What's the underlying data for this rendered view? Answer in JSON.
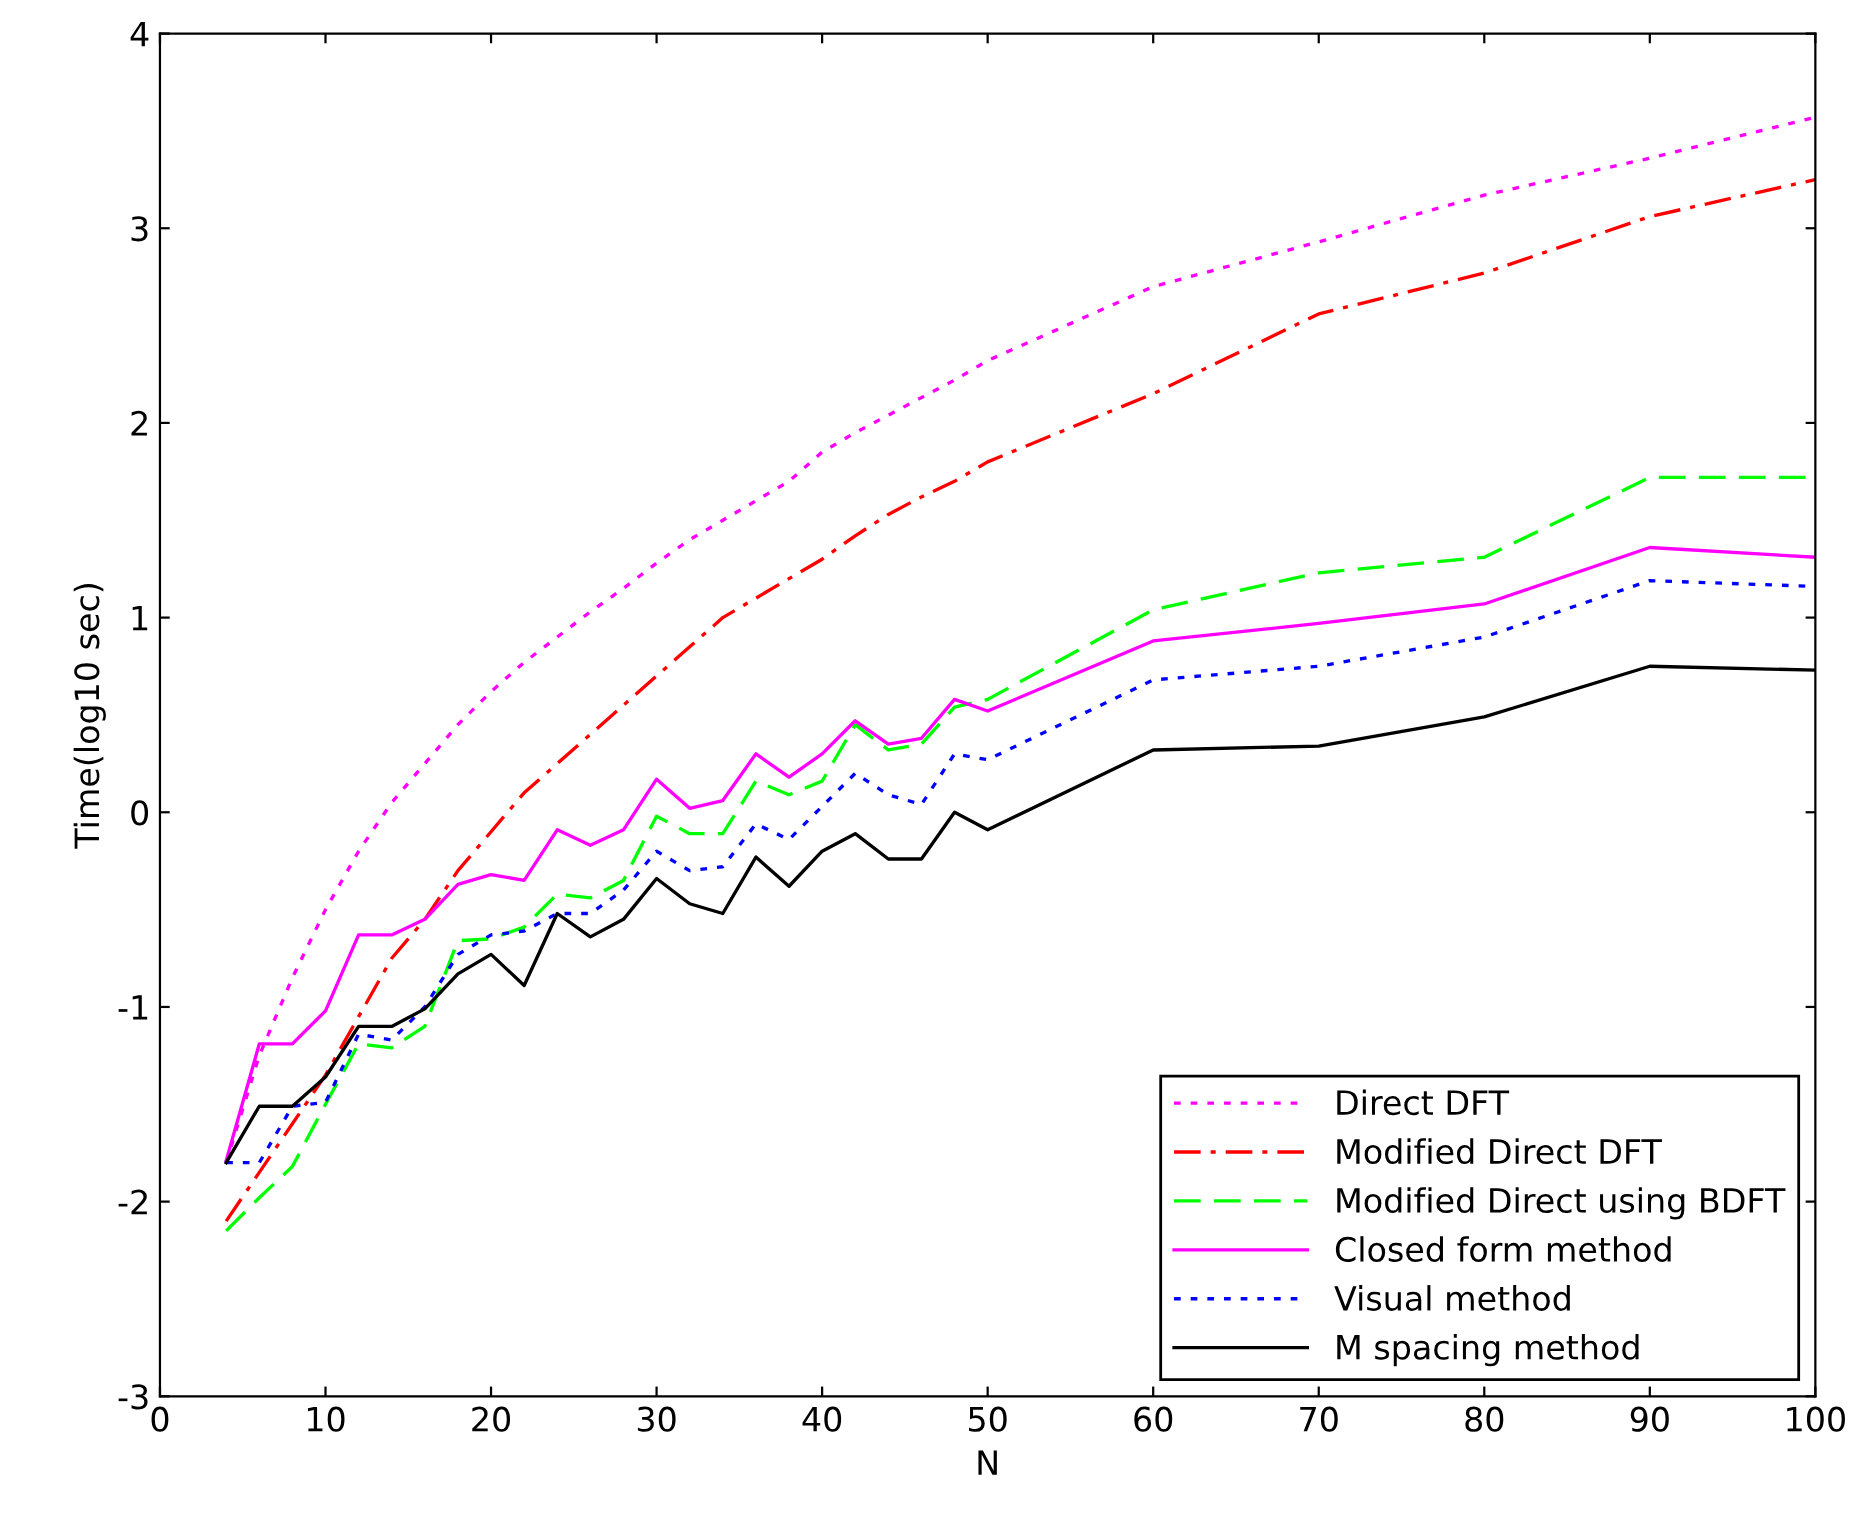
{
  "chart_data": {
    "type": "line",
    "xlabel": "N",
    "ylabel": "Time(log10 sec)",
    "x": [
      4,
      6,
      8,
      10,
      12,
      14,
      16,
      18,
      20,
      22,
      24,
      26,
      28,
      30,
      32,
      34,
      36,
      38,
      40,
      42,
      44,
      46,
      48,
      50,
      60,
      70,
      80,
      90,
      100
    ],
    "xlim": [
      0,
      100
    ],
    "xticks": [
      0,
      10,
      20,
      30,
      40,
      50,
      60,
      70,
      80,
      90,
      100
    ],
    "ylim": [
      -3,
      4
    ],
    "yticks": [
      -3,
      -2,
      -1,
      0,
      1,
      2,
      3,
      4
    ],
    "grid": false,
    "legend": "bottom right",
    "marker": "none",
    "series": [
      {
        "name": "Direct DFT",
        "color": "#ff00ff",
        "line_style": "dotted",
        "values": [
          -1.8,
          -1.25,
          -0.85,
          -0.5,
          -0.2,
          0.05,
          0.25,
          0.45,
          0.62,
          0.77,
          0.9,
          1.03,
          1.15,
          1.28,
          1.4,
          1.5,
          1.6,
          1.7,
          1.85,
          1.95,
          2.04,
          2.13,
          2.22,
          2.32,
          2.7,
          2.93,
          3.17,
          3.36,
          3.57
        ]
      },
      {
        "name": "Modified Direct DFT",
        "color": "#ff0000",
        "line_style": "dashdot",
        "values": [
          -2.1,
          -1.85,
          -1.6,
          -1.35,
          -1.05,
          -0.75,
          -0.55,
          -0.3,
          -0.1,
          0.1,
          0.25,
          0.4,
          0.55,
          0.7,
          0.85,
          1.0,
          1.1,
          1.2,
          1.3,
          1.42,
          1.53,
          1.62,
          1.7,
          1.8,
          2.15,
          2.56,
          2.77,
          3.06,
          3.25
        ]
      },
      {
        "name": "Modified Direct using BDFT",
        "color": "#00ff00",
        "line_style": "dashed",
        "values": [
          -2.15,
          -1.98,
          -1.82,
          -1.5,
          -1.19,
          -1.21,
          -1.1,
          -0.66,
          -0.65,
          -0.59,
          -0.42,
          -0.44,
          -0.35,
          -0.02,
          -0.11,
          -0.11,
          0.16,
          0.09,
          0.16,
          0.45,
          0.32,
          0.35,
          0.54,
          0.58,
          1.04,
          1.23,
          1.31,
          1.72,
          1.72
        ]
      },
      {
        "name": "Closed form method",
        "color": "#ff00ff",
        "line_style": "solid",
        "values": [
          -1.79,
          -1.19,
          -1.19,
          -1.02,
          -0.63,
          -0.63,
          -0.55,
          -0.37,
          -0.32,
          -0.35,
          -0.09,
          -0.17,
          -0.09,
          0.17,
          0.02,
          0.06,
          0.3,
          0.18,
          0.3,
          0.47,
          0.35,
          0.38,
          0.58,
          0.52,
          0.88,
          0.97,
          1.07,
          1.36,
          1.31
        ]
      },
      {
        "name": "Visual method",
        "color": "#0000ff",
        "line_style": "dotted",
        "values": [
          -1.8,
          -1.8,
          -1.51,
          -1.49,
          -1.14,
          -1.17,
          -1.0,
          -0.73,
          -0.63,
          -0.61,
          -0.52,
          -0.52,
          -0.4,
          -0.2,
          -0.3,
          -0.28,
          -0.06,
          -0.14,
          0.03,
          0.2,
          0.09,
          0.04,
          0.3,
          0.27,
          0.68,
          0.75,
          0.9,
          1.19,
          1.16
        ]
      },
      {
        "name": "M spacing method",
        "color": "#000000",
        "line_style": "solid",
        "values": [
          -1.8,
          -1.51,
          -1.51,
          -1.36,
          -1.1,
          -1.1,
          -1.01,
          -0.83,
          -0.73,
          -0.89,
          -0.52,
          -0.64,
          -0.55,
          -0.34,
          -0.47,
          -0.52,
          -0.23,
          -0.38,
          -0.2,
          -0.11,
          -0.24,
          -0.24,
          0.0,
          -0.09,
          0.32,
          0.34,
          0.49,
          0.75,
          0.73
        ]
      }
    ]
  }
}
